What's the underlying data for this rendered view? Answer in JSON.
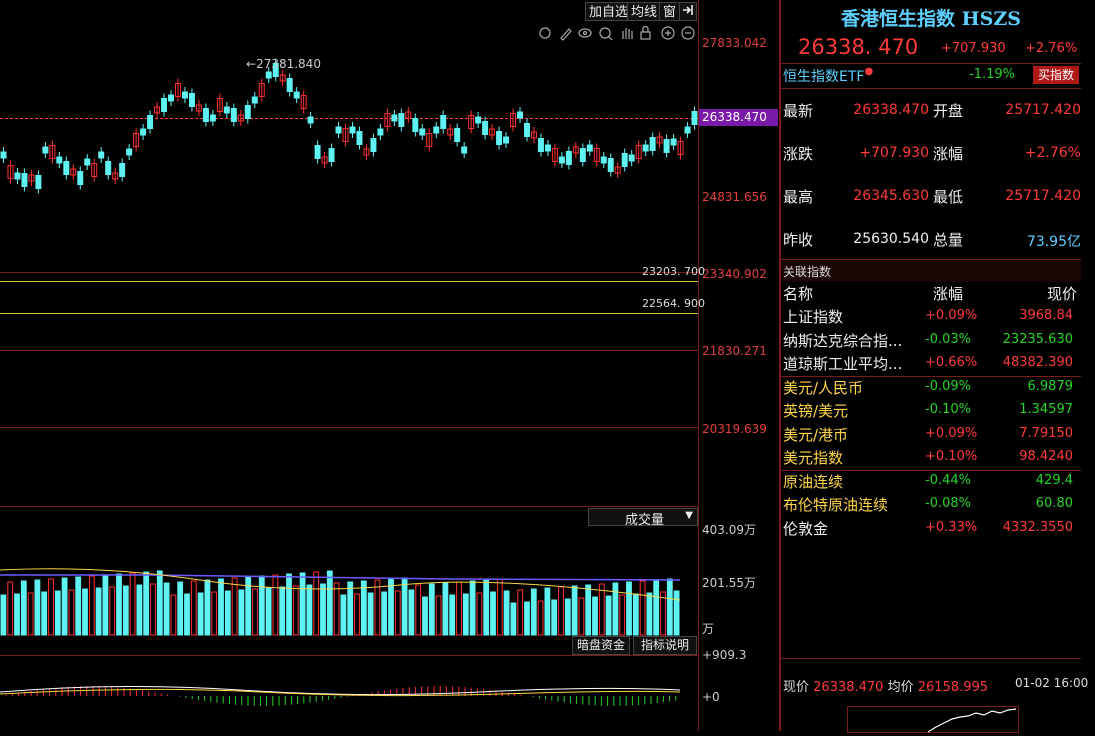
{
  "toolbar": {
    "add_watchlist": "加自选",
    "average_line": "均线",
    "window": "窗"
  },
  "price_axis": [
    "27833.042",
    "26338.470",
    "24831.656",
    "23340.902",
    "21830.271",
    "20319.639"
  ],
  "peak_label": "27381.840",
  "reference_lines": [
    "23203. 700",
    "22564. 900"
  ],
  "volume": {
    "indicator": "成交量",
    "axis_top": "403.09万",
    "axis_mid": "201.55万",
    "unit": "万"
  },
  "bottom_buttons": {
    "dark_pool": "暗盘资金",
    "indicator_help": "指标说明"
  },
  "macd_axis": {
    "top": "+909.3",
    "zero": "+0"
  },
  "quote": {
    "title": "香港恒生指数 HSZS",
    "price": "26338. 470",
    "change": "+707.930",
    "change_pct": "+2.76%",
    "etf_label": "恒生指数ETF",
    "etf_change": "-1.19%",
    "buy_button": "买指数",
    "rows": [
      {
        "l1": "最新",
        "v1": "26338.470",
        "l2": "开盘",
        "v2": "25717.420"
      },
      {
        "l1": "涨跌",
        "v1": "+707.930",
        "l2": "涨幅",
        "v2": "+2.76%"
      },
      {
        "l1": "最高",
        "v1": "26345.630",
        "l2": "最低",
        "v2": "25717.420"
      },
      {
        "l1": "昨收",
        "v1": "25630.540",
        "l2": "总量",
        "v2": "73.95亿"
      }
    ]
  },
  "related": {
    "title": "关联指数",
    "headers": [
      "名称",
      "涨幅",
      "现价"
    ],
    "items": [
      {
        "name": "上证指数",
        "change": "+0.09%",
        "price": "3968.84"
      },
      {
        "name": "纳斯达克综合指...",
        "change": "-0.03%",
        "price": "23235.630"
      },
      {
        "name": "道琼斯工业平均...",
        "change": "+0.66%",
        "price": "48382.390"
      },
      {
        "name": "美元/人民币",
        "change": "-0.09%",
        "price": "6.9879"
      },
      {
        "name": "英镑/美元",
        "change": "-0.10%",
        "price": "1.34597"
      },
      {
        "name": "美元/港币",
        "change": "+0.09%",
        "price": "7.79150"
      },
      {
        "name": "美元指数",
        "change": "+0.10%",
        "price": "98.4240"
      },
      {
        "name": "原油连续",
        "change": "-0.44%",
        "price": "429.4"
      },
      {
        "name": "布伦特原油连续",
        "change": "-0.08%",
        "price": "60.80"
      },
      {
        "name": "伦敦金",
        "change": "+0.33%",
        "price": "4332.3550"
      }
    ]
  },
  "bottom_bar": {
    "price_label": "现价",
    "price": "26338.470",
    "avg_label": "均价",
    "avg": "26158.995",
    "datetime": "01-02 16:00"
  },
  "colors": {
    "up": "#ff3b3b",
    "down": "#27d327",
    "bull_candle": "#5ef2f2",
    "bear_candle": "#ff3030",
    "grid": "#7a1a1a",
    "ref_line": "#d8c640"
  }
}
